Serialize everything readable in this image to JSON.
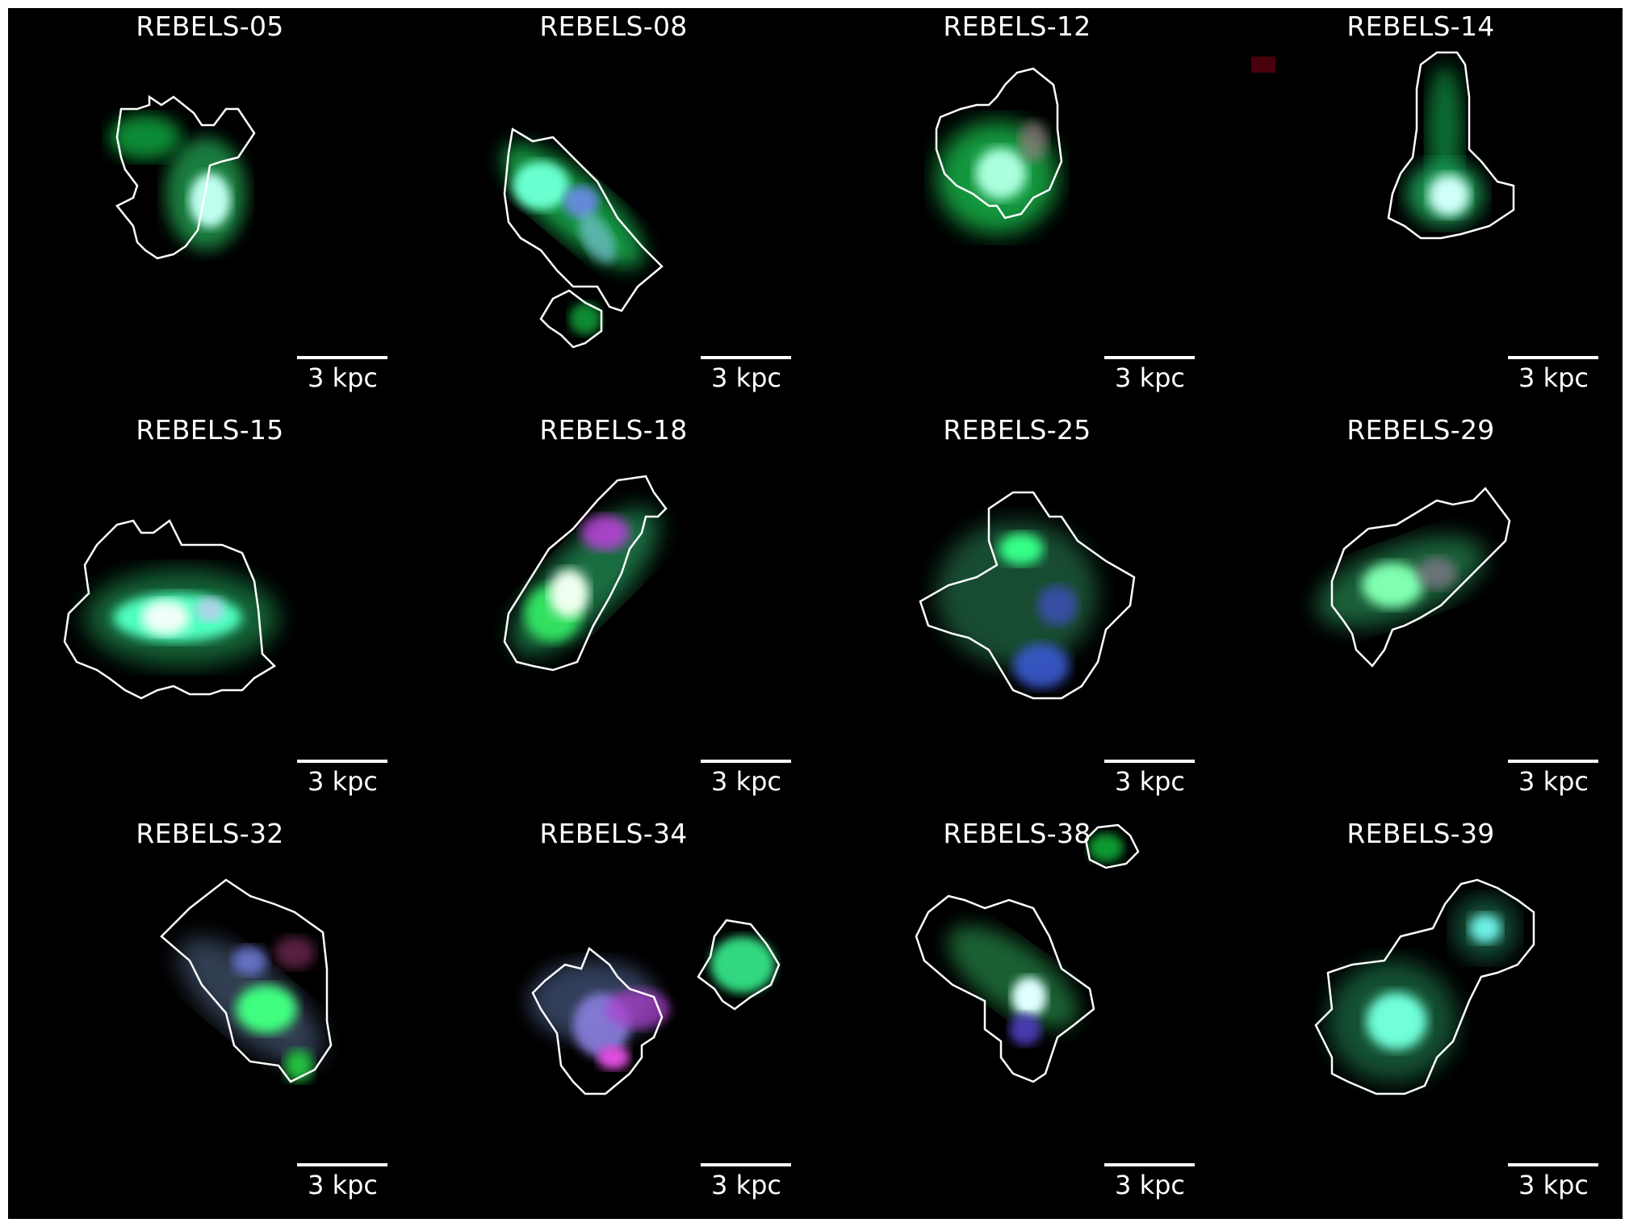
{
  "panels": [
    {
      "name": "REBELS-05",
      "scale_label": "3 kpc"
    },
    {
      "name": "REBELS-08",
      "scale_label": "3 kpc"
    },
    {
      "name": "REBELS-12",
      "scale_label": "3 kpc"
    },
    {
      "name": "REBELS-14",
      "scale_label": "3 kpc"
    },
    {
      "name": "REBELS-15",
      "scale_label": "3 kpc"
    },
    {
      "name": "REBELS-18",
      "scale_label": "3 kpc"
    },
    {
      "name": "REBELS-25",
      "scale_label": "3 kpc"
    },
    {
      "name": "REBELS-29",
      "scale_label": "3 kpc"
    },
    {
      "name": "REBELS-32",
      "scale_label": "3 kpc"
    },
    {
      "name": "REBELS-34",
      "scale_label": "3 kpc"
    },
    {
      "name": "REBELS-38",
      "scale_label": "3 kpc"
    },
    {
      "name": "REBELS-39",
      "scale_label": "3 kpc"
    }
  ],
  "colors": {
    "background": "#000000",
    "contour": "#ffffff",
    "green": "#22e060",
    "cyan": "#7ffff0",
    "blue": "#5a66ff",
    "magenta": "#d040e0"
  }
}
